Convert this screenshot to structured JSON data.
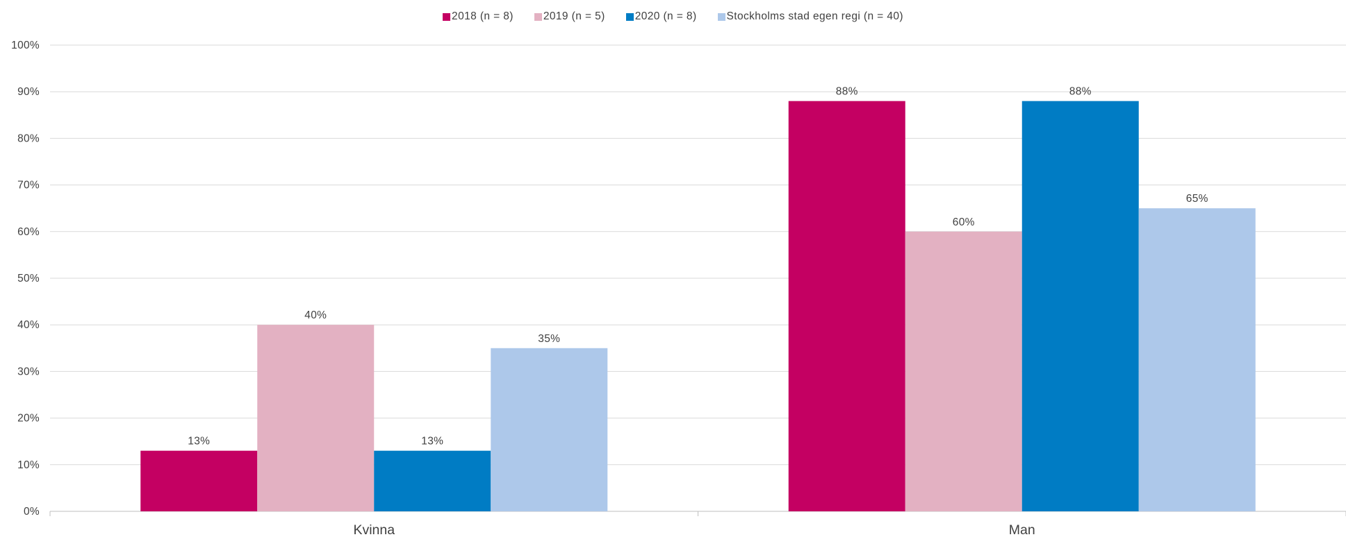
{
  "chart_data": {
    "type": "bar",
    "categories": [
      "Kvinna",
      "Man"
    ],
    "series": [
      {
        "name": "2018 (n = 8)",
        "values": [
          13,
          88
        ],
        "labels": [
          "13%",
          "88%"
        ],
        "color": "#C40062"
      },
      {
        "name": "2019 (n = 5)",
        "values": [
          40,
          60
        ],
        "labels": [
          "40%",
          "60%"
        ],
        "color": "#E3B1C2"
      },
      {
        "name": "2020 (n = 8)",
        "values": [
          13,
          88
        ],
        "labels": [
          "13%",
          "88%"
        ],
        "color": "#007CC4"
      },
      {
        "name": "Stockholms stad egen regi (n = 40)",
        "values": [
          35,
          65
        ],
        "labels": [
          "35%",
          "65%"
        ],
        "color": "#ADC8EA"
      }
    ],
    "ylim": [
      0,
      100
    ],
    "yticks": [
      "0%",
      "10%",
      "20%",
      "30%",
      "40%",
      "50%",
      "60%",
      "70%",
      "80%",
      "90%",
      "100%"
    ],
    "grid": true,
    "legend_position": "top-center",
    "title": "",
    "xlabel": "",
    "ylabel": ""
  }
}
